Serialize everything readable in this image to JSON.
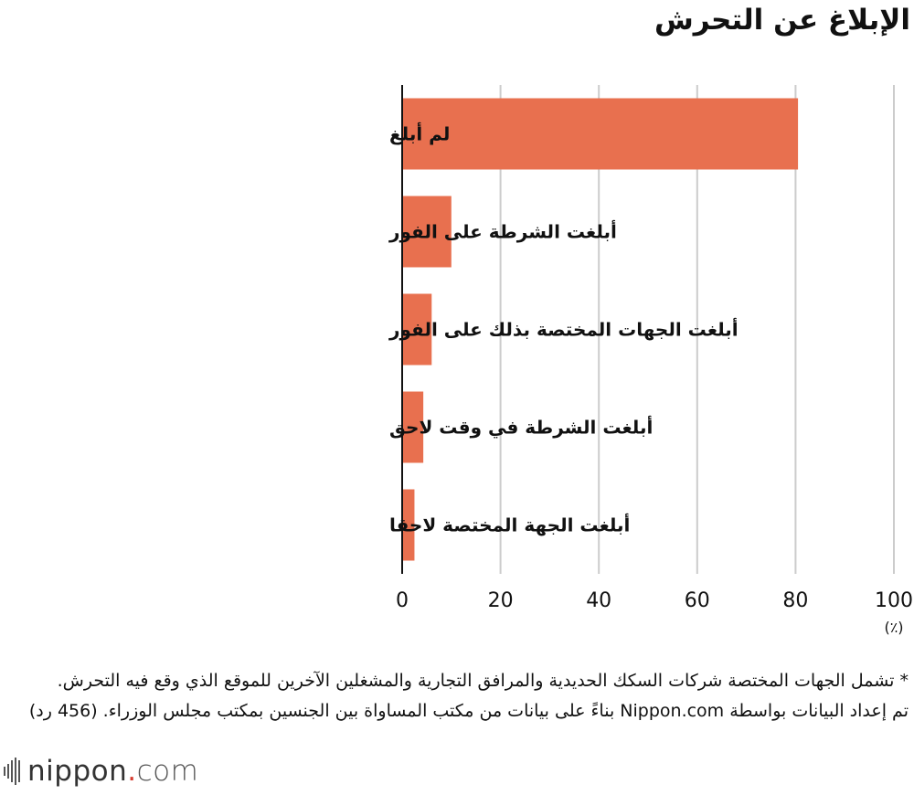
{
  "title": "الإبلاغ عن التحرش",
  "chart_data": {
    "type": "bar",
    "orientation": "horizontal",
    "title": "الإبلاغ عن التحرش",
    "categories": [
      "لم أبلغ",
      "أبلغت الشرطة على الفور",
      "أبلغت الجهات المختصة بذلك على الفور",
      "أبلغت الشرطة في وقت لاحق",
      "أبلغت الجهة المختصة لاحقا"
    ],
    "values": [
      80.5,
      10,
      6,
      4.3,
      2.5
    ],
    "xlim": [
      0,
      100
    ],
    "xticks": [
      "0",
      "20",
      "40",
      "60",
      "80",
      "100"
    ],
    "xunit": "(٪)",
    "grid": true,
    "bar_color": "#e8704f",
    "grid_color": "#cccccc"
  },
  "notes": {
    "line1": "* تشمل الجهات المختصة شركات السكك الحديدية والمرافق التجارية والمشغلين الآخرين للموقع الذي وقع فيه التحرش.",
    "line2": "تم إعداد البيانات بواسطة Nippon.com بناءً على بيانات من مكتب المساواة بين الجنسين بمكتب مجلس الوزراء. (456 رد)"
  },
  "logo": {
    "name": "nippon",
    "dot": ".",
    "tld": "com"
  }
}
